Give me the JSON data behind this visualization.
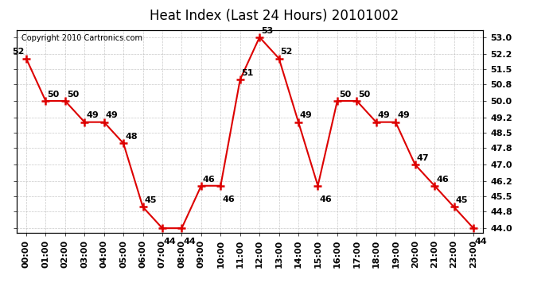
{
  "title": "Heat Index (Last 24 Hours) 20101002",
  "copyright": "Copyright 2010 Cartronics.com",
  "hours": [
    "00:00",
    "01:00",
    "02:00",
    "03:00",
    "04:00",
    "05:00",
    "06:00",
    "07:00",
    "08:00",
    "09:00",
    "10:00",
    "11:00",
    "12:00",
    "13:00",
    "14:00",
    "15:00",
    "16:00",
    "17:00",
    "18:00",
    "19:00",
    "20:00",
    "21:00",
    "22:00",
    "23:00"
  ],
  "values": [
    52,
    50,
    50,
    49,
    49,
    48,
    45,
    44,
    44,
    46,
    46,
    51,
    53,
    52,
    49,
    46,
    50,
    50,
    49,
    49,
    47,
    46,
    45,
    44
  ],
  "line_color": "#dd0000",
  "marker_color": "#dd0000",
  "bg_color": "#ffffff",
  "grid_color": "#bbbbbb",
  "ylim_min": 43.8,
  "ylim_max": 53.35,
  "yticks": [
    44.0,
    44.8,
    45.5,
    46.2,
    47.0,
    47.8,
    48.5,
    49.2,
    50.0,
    50.8,
    51.5,
    52.2,
    53.0
  ],
  "title_fontsize": 12,
  "tick_fontsize": 8,
  "copyright_fontsize": 7
}
